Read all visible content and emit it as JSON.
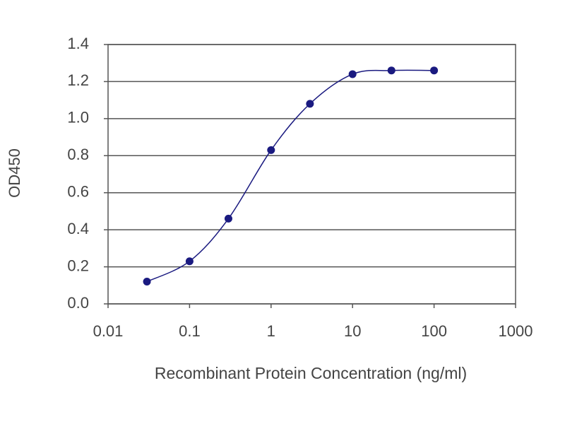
{
  "chart_data": {
    "type": "scatter",
    "x_label": "Recombinant Protein Concentration (ng/ml)",
    "y_label": "OD450",
    "x": [
      0.03,
      0.1,
      0.3,
      1,
      3,
      10,
      30,
      100
    ],
    "values": [
      0.12,
      0.23,
      0.46,
      0.83,
      1.08,
      1.24,
      1.26,
      1.26
    ],
    "color": "#1a1a80",
    "xscale": "log",
    "xlim": [
      0.01,
      1000
    ],
    "xticks": [
      0.01,
      0.1,
      1,
      10,
      100,
      1000
    ],
    "ylim": [
      0,
      1.4
    ],
    "yticks": [
      {
        "value": 0,
        "label": "0.0"
      },
      0.2,
      0.4,
      0.6,
      0.8,
      {
        "value": 1,
        "label": "1.0"
      },
      1.2,
      1.4
    ],
    "grid": true
  }
}
